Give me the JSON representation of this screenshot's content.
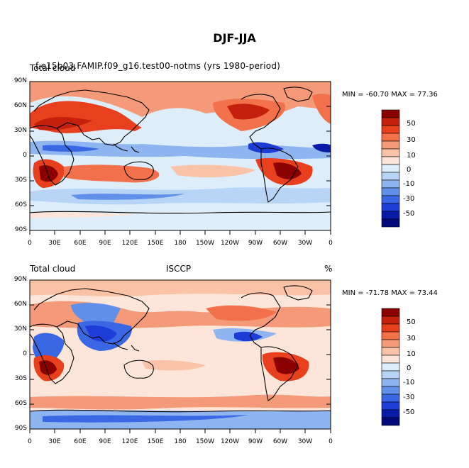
{
  "title": "DJF-JJA",
  "panels": [
    {
      "left_title": "Total cloud",
      "center_title": "f.e15b03.FAMIP.f09_g16.test00-notms (yrs 1980-period)",
      "right_title": "%",
      "min_max": "MIN = -60.70 MAX =  77.36"
    },
    {
      "left_title": "Total cloud",
      "center_title": "ISCCP",
      "right_title": "%",
      "min_max": "MIN = -71.78 MAX =  73.44"
    }
  ],
  "lat_ticks": [
    "90N",
    "60N",
    "30N",
    "0",
    "30S",
    "60S",
    "90S"
  ],
  "lon_ticks": [
    "0",
    "30E",
    "60E",
    "90E",
    "120E",
    "150E",
    "180",
    "150W",
    "120W",
    "90W",
    "60W",
    "30W",
    "0"
  ],
  "colorbar": {
    "labels": [
      "50",
      "30",
      "10",
      "0",
      "-10",
      "-30",
      "-50"
    ],
    "colors": [
      "#8b0000",
      "#c4200d",
      "#e8401c",
      "#f2704a",
      "#f59a78",
      "#fac3a8",
      "#fde6d9",
      "#ddeefa",
      "#b8d4f5",
      "#8fb5f0",
      "#6190ea",
      "#3a67e3",
      "#1d3dd8",
      "#0a1aa8",
      "#000a7d"
    ]
  }
}
